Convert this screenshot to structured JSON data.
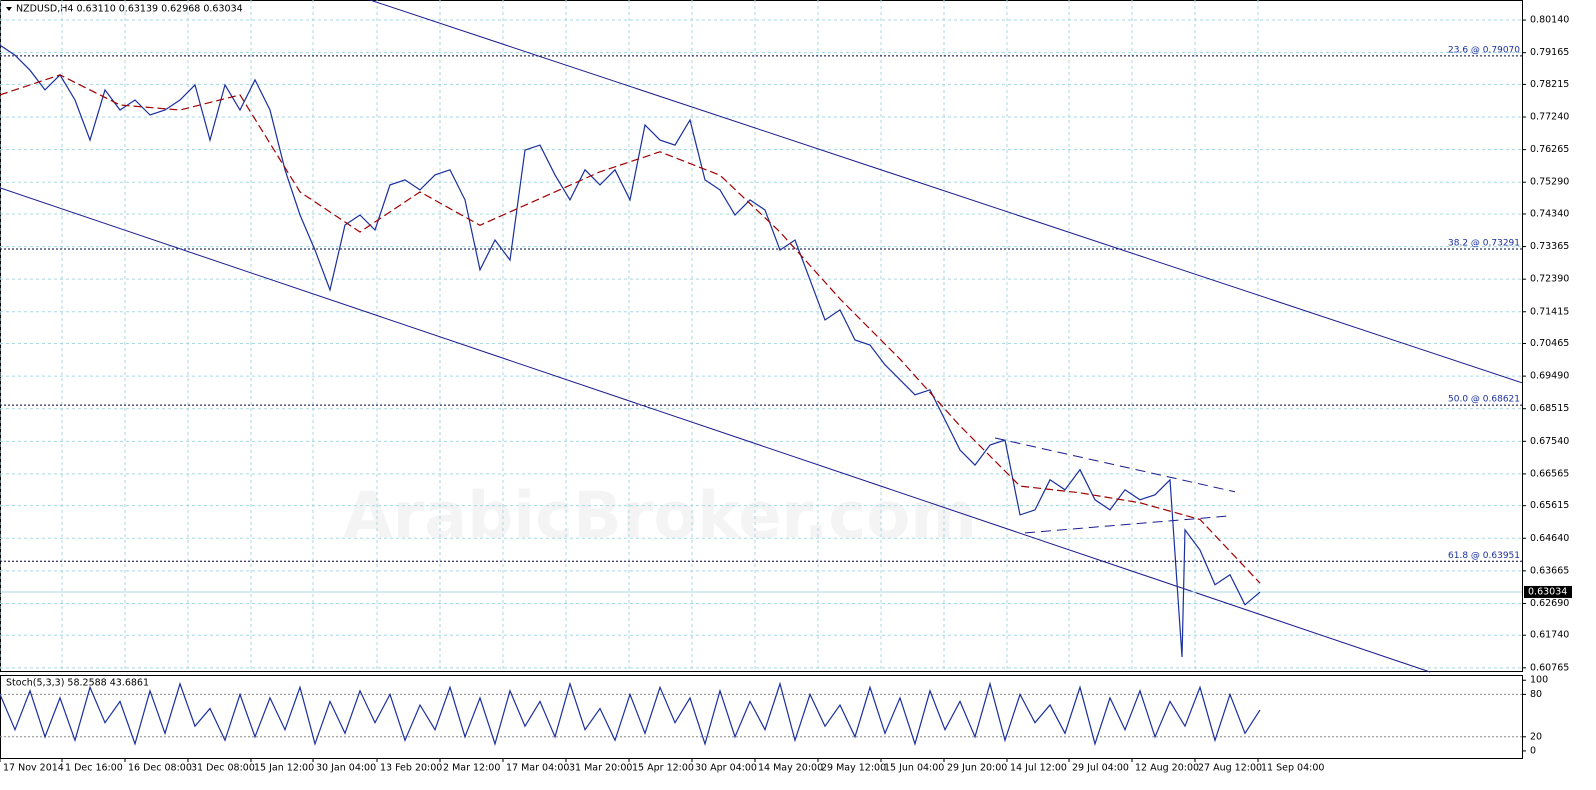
{
  "chart_data": [
    {
      "type": "line",
      "title": "NZDUSD,H4  0.63110 0.63139 0.62968 0.63034",
      "watermark": "ArabicBroker.com",
      "xlim": [
        0,
        1522
      ],
      "ylim": [
        0.6064,
        0.8074
      ],
      "grid": true,
      "xticks": [
        {
          "value": 0,
          "label": "17 Nov 2014"
        },
        {
          "value": 62,
          "label": "1 Dec 16:00"
        },
        {
          "value": 125,
          "label": "16 Dec 08:00"
        },
        {
          "value": 188,
          "label": "31 Dec 08:00"
        },
        {
          "value": 251,
          "label": "15 Jan 12:00"
        },
        {
          "value": 313,
          "label": "30 Jan 04:00"
        },
        {
          "value": 377,
          "label": "13 Feb 20:00"
        },
        {
          "value": 440,
          "label": "2 Mar 12:00"
        },
        {
          "value": 503,
          "label": "17 Mar 04:00"
        },
        {
          "value": 566,
          "label": "31 Mar 20:00"
        },
        {
          "value": 629,
          "label": "15 Apr 12:00"
        },
        {
          "value": 692,
          "label": "30 Apr 04:00"
        },
        {
          "value": 755,
          "label": "14 May 20:00"
        },
        {
          "value": 818,
          "label": "29 May 12:00"
        },
        {
          "value": 881,
          "label": "15 Jun 04:00"
        },
        {
          "value": 944,
          "label": "29 Jun 20:00"
        },
        {
          "value": 1007,
          "label": "14 Jul 12:00"
        },
        {
          "value": 1069,
          "label": "29 Jul 04:00"
        },
        {
          "value": 1132,
          "label": "12 Aug 20:00"
        },
        {
          "value": 1195,
          "label": "27 Aug 12:00"
        },
        {
          "value": 1258,
          "label": "11 Sep 04:00"
        }
      ],
      "yticks": [
        {
          "value": 0.8014,
          "label": "0.80140"
        },
        {
          "value": 0.79165,
          "label": "0.79165"
        },
        {
          "value": 0.78215,
          "label": "0.78215"
        },
        {
          "value": 0.7724,
          "label": "0.77240"
        },
        {
          "value": 0.76265,
          "label": "0.76265"
        },
        {
          "value": 0.7529,
          "label": "0.75290"
        },
        {
          "value": 0.7434,
          "label": "0.74340"
        },
        {
          "value": 0.73365,
          "label": "0.73365"
        },
        {
          "value": 0.7239,
          "label": "0.72390"
        },
        {
          "value": 0.71415,
          "label": "0.71415"
        },
        {
          "value": 0.70465,
          "label": "0.70465"
        },
        {
          "value": 0.6949,
          "label": "0.69490"
        },
        {
          "value": 0.68515,
          "label": "0.68515"
        },
        {
          "value": 0.6754,
          "label": "0.67540"
        },
        {
          "value": 0.66565,
          "label": "0.66565"
        },
        {
          "value": 0.65615,
          "label": "0.65615"
        },
        {
          "value": 0.6464,
          "label": "0.64640"
        },
        {
          "value": 0.63665,
          "label": "0.63665"
        },
        {
          "value": 0.6269,
          "label": "0.62690"
        },
        {
          "value": 0.6174,
          "label": "0.61740"
        },
        {
          "value": 0.60765,
          "label": "0.60765"
        }
      ],
      "current_price": {
        "value": 0.63034,
        "label": "0.63034"
      },
      "levels": [
        {
          "value": 0.7907,
          "label": "23.6 @ 0.79070"
        },
        {
          "value": 0.73291,
          "label": "38.2 @ 0.73291"
        },
        {
          "value": 0.68621,
          "label": "50.0 @ 0.68621"
        },
        {
          "value": 0.63951,
          "label": "61.8 @ 0.63951"
        }
      ],
      "trend_lines": [
        {
          "x": [
            370,
            1522
          ],
          "values": [
            0.8074,
            0.6929
          ],
          "dashed": false
        },
        {
          "x": [
            0,
            1430
          ],
          "values": [
            0.7512,
            0.6064
          ],
          "dashed": false
        },
        {
          "x": [
            995,
            1235
          ],
          "values": [
            0.6764,
            0.6603
          ],
          "dashed": true
        },
        {
          "x": [
            1025,
            1230
          ],
          "values": [
            0.648,
            0.6531
          ],
          "dashed": true
        }
      ],
      "series": [
        {
          "color": "#1a2fa0",
          "x": [
            0,
            15,
            30,
            45,
            60,
            75,
            90,
            105,
            120,
            135,
            150,
            165,
            180,
            195,
            210,
            225,
            240,
            255,
            270,
            285,
            300,
            315,
            330,
            345,
            360,
            375,
            390,
            405,
            420,
            435,
            450,
            465,
            480,
            495,
            510,
            525,
            540,
            555,
            570,
            585,
            600,
            615,
            630,
            645,
            660,
            675,
            690,
            705,
            720,
            735,
            750,
            765,
            780,
            795,
            810,
            825,
            840,
            855,
            870,
            885,
            900,
            915,
            930,
            945,
            960,
            975,
            990,
            1005,
            1020,
            1035,
            1050,
            1065,
            1080,
            1095,
            1110,
            1125,
            1140,
            1155,
            1170,
            1182,
            1185,
            1200,
            1215,
            1230,
            1245,
            1260
          ],
          "values": [
            0.7939,
            0.7909,
            0.7864,
            0.7805,
            0.785,
            0.7775,
            0.7655,
            0.7805,
            0.7745,
            0.7775,
            0.773,
            0.7745,
            0.7775,
            0.782,
            0.7655,
            0.782,
            0.7745,
            0.7835,
            0.7745,
            0.7566,
            0.7431,
            0.7326,
            0.7207,
            0.7401,
            0.7431,
            0.7386,
            0.7521,
            0.7536,
            0.7506,
            0.7551,
            0.7566,
            0.7476,
            0.7267,
            0.7356,
            0.7296,
            0.7625,
            0.764,
            0.7551,
            0.7476,
            0.7566,
            0.7521,
            0.7566,
            0.7476,
            0.77,
            0.7655,
            0.764,
            0.7715,
            0.7536,
            0.7506,
            0.7431,
            0.7476,
            0.7446,
            0.7326,
            0.7356,
            0.7237,
            0.7117,
            0.7147,
            0.7057,
            0.7042,
            0.6983,
            0.6938,
            0.6893,
            0.6908,
            0.6818,
            0.6728,
            0.6683,
            0.6743,
            0.6758,
            0.6534,
            0.6549,
            0.6639,
            0.6609,
            0.6669,
            0.6579,
            0.6549,
            0.6609,
            0.6579,
            0.6594,
            0.6639,
            0.6109,
            0.6489,
            0.6429,
            0.6325,
            0.6355,
            0.6265,
            0.6303
          ]
        },
        {
          "color": "#a00000",
          "dashed": true,
          "x": [
            0,
            60,
            120,
            180,
            240,
            300,
            360,
            420,
            480,
            540,
            600,
            660,
            720,
            780,
            840,
            900,
            960,
            1020,
            1080,
            1140,
            1200,
            1260
          ],
          "values": [
            0.779,
            0.785,
            0.776,
            0.7745,
            0.779,
            0.75,
            0.738,
            0.75,
            0.74,
            0.748,
            0.756,
            0.762,
            0.755,
            0.738,
            0.718,
            0.7,
            0.68,
            0.662,
            0.66,
            0.657,
            0.652,
            0.633
          ]
        }
      ]
    },
    {
      "type": "line",
      "title": "Stoch(5,3,3) 58.2588 43.6861",
      "ylim": [
        -10,
        106
      ],
      "xlim": [
        0,
        1522
      ],
      "yticks": [
        100,
        80,
        20,
        0
      ],
      "levels": [
        80,
        20
      ],
      "series": [
        {
          "color": "#1a2fa0",
          "x": [
            0,
            15,
            30,
            45,
            60,
            75,
            90,
            105,
            120,
            135,
            150,
            165,
            180,
            195,
            210,
            225,
            240,
            255,
            270,
            285,
            300,
            315,
            330,
            345,
            360,
            375,
            390,
            405,
            420,
            435,
            450,
            465,
            480,
            495,
            510,
            525,
            540,
            555,
            570,
            585,
            600,
            615,
            630,
            645,
            660,
            675,
            690,
            705,
            720,
            735,
            750,
            765,
            780,
            795,
            810,
            825,
            840,
            855,
            870,
            885,
            900,
            915,
            930,
            945,
            960,
            975,
            990,
            1005,
            1020,
            1035,
            1050,
            1065,
            1080,
            1095,
            1110,
            1125,
            1140,
            1155,
            1170,
            1185,
            1200,
            1215,
            1230,
            1245,
            1260
          ],
          "values": [
            80,
            30,
            85,
            20,
            75,
            15,
            90,
            40,
            70,
            10,
            85,
            25,
            95,
            35,
            60,
            15,
            80,
            20,
            75,
            30,
            90,
            10,
            70,
            25,
            85,
            40,
            80,
            15,
            65,
            30,
            90,
            20,
            75,
            10,
            85,
            35,
            70,
            20,
            95,
            30,
            60,
            15,
            80,
            25,
            90,
            40,
            75,
            10,
            85,
            20,
            70,
            30,
            95,
            15,
            80,
            35,
            65,
            20,
            90,
            25,
            75,
            10,
            85,
            30,
            70,
            20,
            95,
            15,
            80,
            40,
            65,
            25,
            90,
            10,
            75,
            30,
            85,
            20,
            70,
            35,
            90,
            15,
            80,
            25,
            58
          ]
        }
      ]
    }
  ]
}
